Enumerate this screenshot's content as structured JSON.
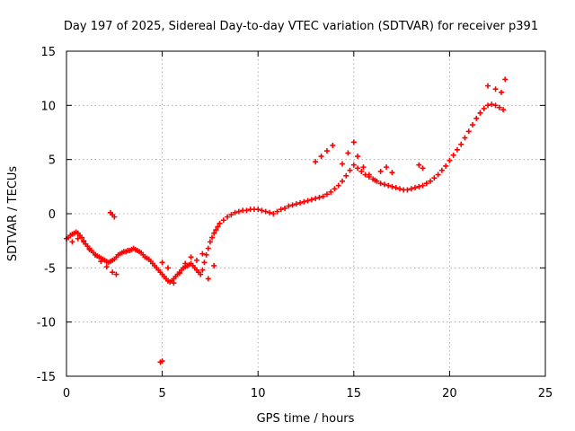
{
  "chart_data": {
    "type": "scatter",
    "title": "Day 197 of 2025, Sidereal Day-to-day VTEC variation (SDTVAR) for receiver p391",
    "xlabel": "GPS time / hours",
    "ylabel": "SDTVAR / TECUs",
    "xlim": [
      0,
      25
    ],
    "ylim": [
      -15,
      15
    ],
    "x_ticks": [
      "0",
      "5",
      "10",
      "15",
      "20",
      "25"
    ],
    "y_ticks": [
      "15",
      "10",
      "5",
      "0",
      "-5",
      "-10",
      "-15"
    ],
    "grid": true,
    "marker": "plus",
    "color": "#ff0000",
    "series": [
      {
        "x": [
          0.0,
          0.1,
          0.2,
          0.3,
          0.4,
          0.5,
          0.6,
          0.7,
          0.8,
          0.9,
          1.0,
          1.1,
          1.2,
          1.3,
          1.4,
          1.5,
          1.6,
          1.7,
          1.8,
          1.9,
          2.0,
          2.1,
          2.2,
          2.3,
          2.4,
          2.5,
          2.6,
          2.7,
          2.8,
          2.9,
          3.0,
          3.1,
          3.2,
          3.3,
          3.4,
          3.5,
          3.6,
          3.7,
          3.8,
          3.9,
          4.0,
          4.1,
          4.2,
          4.3,
          4.4,
          4.5,
          4.6,
          4.7,
          4.8,
          4.9,
          5.0,
          5.1,
          5.2,
          5.3,
          5.4,
          5.5,
          5.6,
          5.7,
          5.8,
          5.9,
          6.0,
          6.1,
          6.2,
          6.3,
          6.4,
          6.5,
          6.6,
          6.7,
          6.8,
          6.9,
          7.0,
          7.1,
          7.2,
          7.3,
          7.4,
          7.5,
          7.6,
          7.7,
          7.8,
          7.9,
          8.0,
          8.2,
          8.4,
          8.6,
          8.8,
          9.0,
          9.2,
          9.4,
          9.6,
          9.8,
          10.0,
          10.2,
          10.4,
          10.6,
          10.8,
          11.0,
          11.2,
          11.4,
          11.6,
          11.8,
          12.0,
          12.2,
          12.4,
          12.6,
          12.8,
          13.0,
          13.2,
          13.4,
          13.6,
          13.8,
          14.0,
          14.2,
          14.4,
          14.6,
          14.8,
          15.0,
          15.2,
          15.4,
          15.6,
          15.8,
          16.0,
          16.2,
          16.4,
          16.6,
          16.8,
          17.0,
          17.2,
          17.4,
          17.6,
          17.8,
          18.0,
          18.2,
          18.4,
          18.6,
          18.8,
          19.0,
          19.2,
          19.4,
          19.6,
          19.8,
          20.0,
          20.2,
          20.4,
          20.6,
          20.8,
          21.0,
          21.2,
          21.4,
          21.6,
          21.8,
          22.0,
          22.2,
          22.4,
          22.6,
          22.8
        ],
        "y": [
          -2.3,
          -2.2,
          -2.0,
          -1.9,
          -1.8,
          -1.7,
          -1.8,
          -2.0,
          -2.2,
          -2.5,
          -2.8,
          -3.0,
          -3.2,
          -3.4,
          -3.6,
          -3.8,
          -3.9,
          -4.0,
          -4.1,
          -4.2,
          -4.3,
          -4.4,
          -4.5,
          -4.4,
          -4.3,
          -4.2,
          -4.0,
          -3.8,
          -3.7,
          -3.6,
          -3.5,
          -3.5,
          -3.4,
          -3.4,
          -3.3,
          -3.2,
          -3.3,
          -3.4,
          -3.5,
          -3.6,
          -3.8,
          -4.0,
          -4.1,
          -4.2,
          -4.4,
          -4.6,
          -4.8,
          -5.0,
          -5.2,
          -5.4,
          -5.6,
          -5.8,
          -6.0,
          -6.2,
          -6.3,
          -6.2,
          -6.0,
          -5.8,
          -5.6,
          -5.4,
          -5.2,
          -5.0,
          -4.9,
          -4.8,
          -4.7,
          -4.6,
          -4.8,
          -5.0,
          -5.2,
          -5.4,
          -5.6,
          -5.2,
          -4.5,
          -3.8,
          -3.2,
          -2.6,
          -2.2,
          -1.8,
          -1.5,
          -1.2,
          -0.9,
          -0.6,
          -0.3,
          -0.1,
          0.1,
          0.2,
          0.3,
          0.3,
          0.4,
          0.4,
          0.4,
          0.3,
          0.2,
          0.1,
          0.0,
          0.2,
          0.4,
          0.5,
          0.7,
          0.8,
          0.9,
          1.0,
          1.1,
          1.2,
          1.3,
          1.4,
          1.5,
          1.6,
          1.8,
          2.0,
          2.3,
          2.6,
          3.0,
          3.5,
          4.0,
          4.5,
          4.2,
          3.9,
          3.6,
          3.4,
          3.2,
          3.0,
          2.8,
          2.7,
          2.6,
          2.5,
          2.4,
          2.3,
          2.2,
          2.2,
          2.3,
          2.4,
          2.5,
          2.6,
          2.8,
          3.0,
          3.3,
          3.6,
          4.0,
          4.4,
          4.9,
          5.4,
          5.9,
          6.4,
          7.0,
          7.6,
          8.2,
          8.8,
          9.3,
          9.7,
          10.0,
          10.1,
          10.0,
          9.8,
          9.6
        ]
      },
      {
        "x": [
          0.3,
          0.6,
          0.9,
          1.2,
          1.5,
          1.8,
          2.1,
          2.4,
          2.6,
          5.0,
          5.3,
          5.6,
          5.9,
          6.2,
          6.5,
          6.8,
          7.1,
          7.4,
          7.7,
          13.0,
          13.3,
          13.6,
          13.9,
          14.4,
          14.7,
          15.0,
          15.2,
          15.5,
          15.8,
          16.1,
          16.4,
          16.7,
          17.0,
          18.4,
          18.6,
          21.6,
          22.0,
          22.4,
          22.7,
          22.9
        ],
        "y": [
          -2.6,
          -2.3,
          -2.6,
          -3.3,
          -3.8,
          -4.4,
          -4.9,
          -5.4,
          -5.6,
          -4.5,
          -5.0,
          -6.4,
          -5.5,
          -4.6,
          -4.0,
          -4.3,
          -3.7,
          -6.0,
          -4.8,
          4.8,
          5.3,
          5.8,
          6.3,
          4.6,
          5.6,
          6.6,
          5.3,
          4.3,
          3.6,
          3.1,
          3.9,
          4.3,
          3.8,
          4.5,
          4.2,
          9.3,
          11.8,
          11.5,
          11.2,
          12.4
        ]
      },
      {
        "x": [
          2.3,
          2.4,
          2.5,
          4.9,
          5.0
        ],
        "y": [
          0.1,
          -0.1,
          -0.3,
          -13.7,
          -13.6
        ]
      }
    ]
  }
}
